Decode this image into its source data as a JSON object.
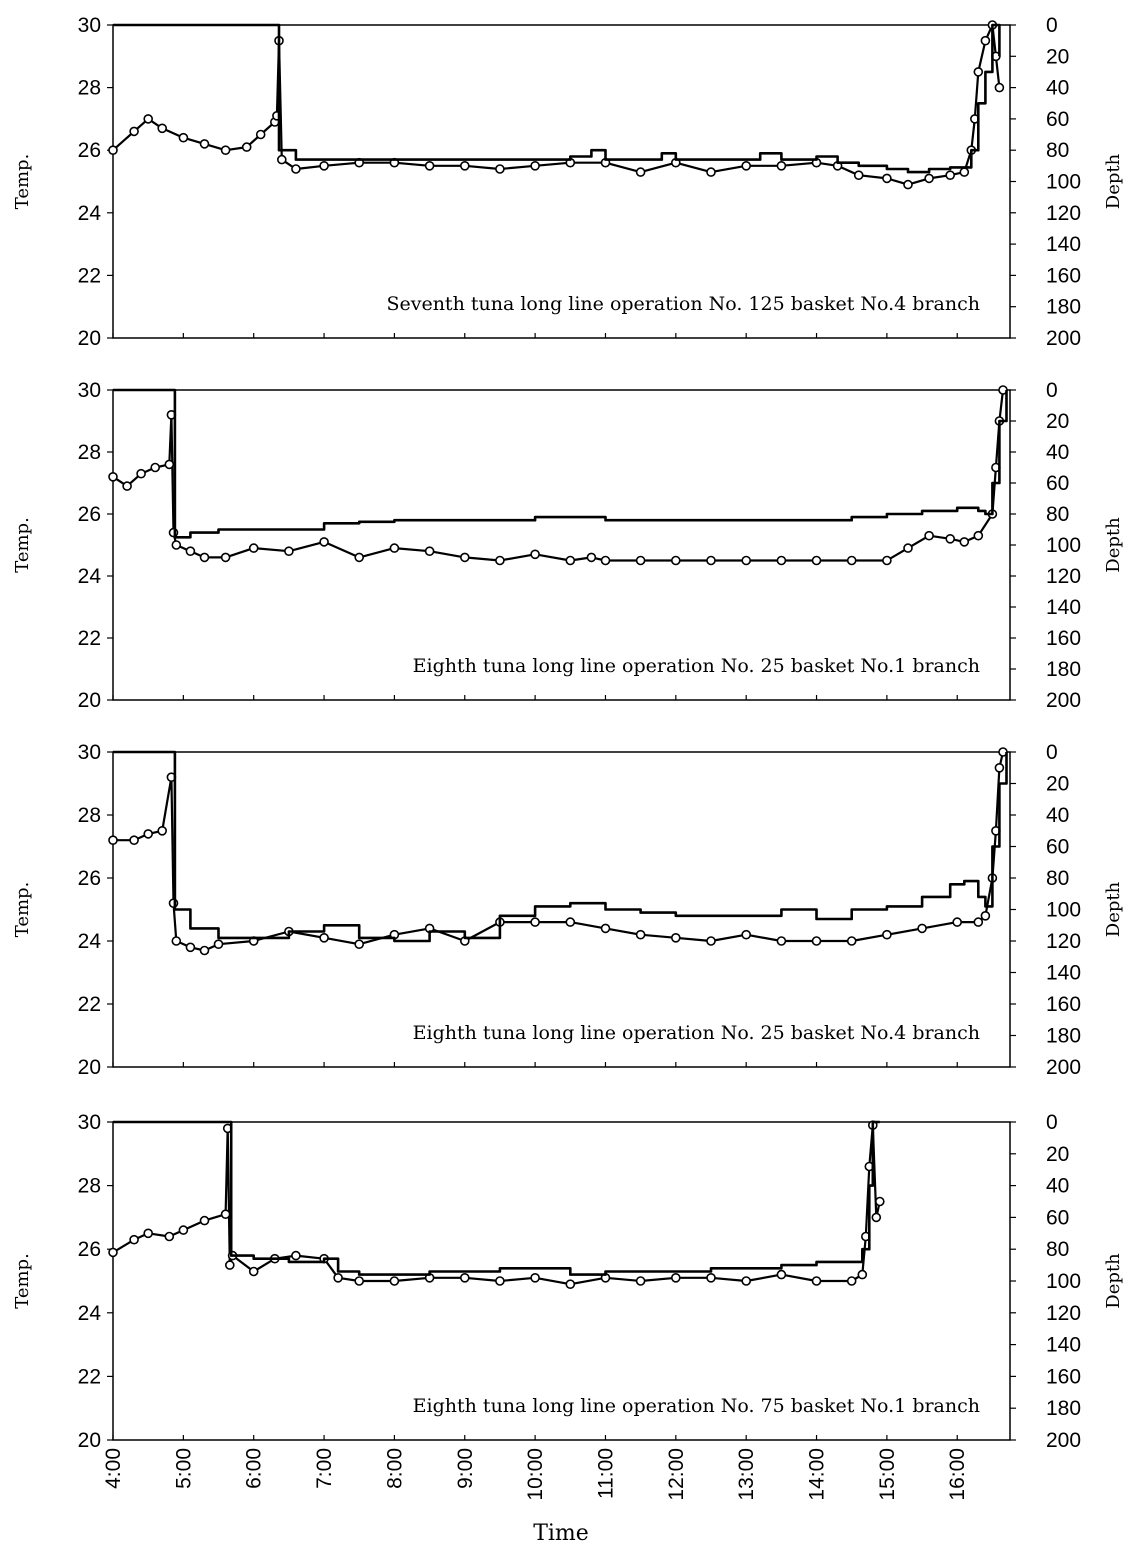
{
  "figure": {
    "x_axis_label": "Time",
    "left_axis_label": "Temp.",
    "right_axis_label": "Depth",
    "x_tick_labels": [
      "4:00",
      "5:00",
      "6:00",
      "7:00",
      "8:00",
      "9:00",
      "10:00",
      "11:00",
      "12:00",
      "13:00",
      "14:00",
      "15:00",
      "16:00"
    ],
    "left_tick_labels": [
      "30",
      "28",
      "26",
      "24",
      "22",
      "20"
    ],
    "right_tick_labels": [
      "0",
      "20",
      "40",
      "60",
      "80",
      "100",
      "120",
      "140",
      "160",
      "180",
      "200"
    ],
    "colors": {
      "line": "#000000",
      "marker_fill": "#ffffff",
      "background": "#ffffff"
    }
  },
  "chart_data": [
    {
      "type": "line",
      "title": "Seventh tuna long line operation No. 125 basket No.4 branch",
      "xlabel": "Time",
      "ylabel": "Temp.",
      "y2label": "Depth",
      "xlim": [
        4.0,
        16.75
      ],
      "ylim": [
        20,
        30
      ],
      "y2lim": [
        200,
        0
      ],
      "grid": false,
      "series": [
        {
          "axis": "left",
          "marker": "circle",
          "x": [
            4.0,
            4.3,
            4.5,
            4.7,
            5.0,
            5.3,
            5.6,
            5.9,
            6.1,
            6.3,
            6.33,
            6.36,
            6.4,
            6.6,
            7.0,
            7.5,
            8.0,
            8.5,
            9.0,
            9.5,
            10.0,
            10.5,
            11.0,
            11.5,
            12.0,
            12.5,
            13.0,
            13.5,
            14.0,
            14.3,
            14.6,
            15.0,
            15.3,
            15.6,
            15.9,
            16.1,
            16.2,
            16.25,
            16.3,
            16.4,
            16.5,
            16.55,
            16.6
          ],
          "y": [
            26.0,
            26.6,
            27.0,
            26.7,
            26.4,
            26.2,
            26.0,
            26.1,
            26.5,
            26.9,
            27.1,
            29.5,
            25.7,
            25.4,
            25.5,
            25.6,
            25.6,
            25.5,
            25.5,
            25.4,
            25.5,
            25.6,
            25.6,
            25.3,
            25.6,
            25.3,
            25.5,
            25.5,
            25.6,
            25.5,
            25.2,
            25.1,
            24.9,
            25.1,
            25.2,
            25.3,
            26.0,
            27.0,
            28.5,
            29.5,
            30.0,
            29.0,
            28.0
          ]
        },
        {
          "axis": "right",
          "marker": "none",
          "x": [
            4.0,
            6.33,
            6.36,
            6.6,
            7.0,
            7.5,
            8.0,
            8.5,
            9.0,
            9.5,
            10.0,
            10.5,
            10.8,
            11.0,
            11.5,
            11.8,
            12.0,
            12.5,
            13.0,
            13.2,
            13.5,
            14.0,
            14.3,
            14.6,
            15.0,
            15.3,
            15.6,
            15.9,
            16.1,
            16.2,
            16.3,
            16.4,
            16.5,
            16.6
          ],
          "y": [
            0,
            0,
            80,
            86,
            86,
            86,
            86,
            86,
            86,
            86,
            86,
            84,
            80,
            86,
            86,
            82,
            86,
            86,
            86,
            82,
            86,
            84,
            88,
            90,
            92,
            94,
            92,
            91,
            91,
            80,
            50,
            30,
            0,
            20
          ]
        }
      ]
    },
    {
      "type": "line",
      "title": "Eighth tuna long line operation No. 25 basket No.1 branch",
      "xlabel": "Time",
      "ylabel": "Temp.",
      "y2label": "Depth",
      "xlim": [
        4.0,
        16.75
      ],
      "ylim": [
        20,
        30
      ],
      "y2lim": [
        200,
        0
      ],
      "grid": false,
      "series": [
        {
          "axis": "left",
          "marker": "circle",
          "x": [
            4.0,
            4.2,
            4.4,
            4.6,
            4.8,
            4.83,
            4.86,
            4.9,
            5.1,
            5.3,
            5.6,
            6.0,
            6.5,
            7.0,
            7.5,
            8.0,
            8.5,
            9.0,
            9.5,
            10.0,
            10.5,
            10.8,
            11.0,
            11.5,
            12.0,
            12.5,
            13.0,
            13.5,
            14.0,
            14.5,
            15.0,
            15.3,
            15.6,
            15.9,
            16.1,
            16.3,
            16.5,
            16.55,
            16.6,
            16.65
          ],
          "y": [
            27.2,
            26.9,
            27.3,
            27.5,
            27.6,
            29.2,
            25.4,
            25.0,
            24.8,
            24.6,
            24.6,
            24.9,
            24.8,
            25.1,
            24.6,
            24.9,
            24.8,
            24.6,
            24.5,
            24.7,
            24.5,
            24.6,
            24.5,
            24.5,
            24.5,
            24.5,
            24.5,
            24.5,
            24.5,
            24.5,
            24.5,
            24.9,
            25.3,
            25.2,
            25.1,
            25.3,
            26.0,
            27.5,
            29.0,
            30.0
          ]
        },
        {
          "axis": "right",
          "marker": "none",
          "x": [
            4.0,
            4.85,
            4.88,
            5.1,
            5.5,
            6.0,
            6.5,
            7.0,
            7.5,
            8.0,
            9.0,
            10.0,
            11.0,
            11.5,
            12.0,
            13.0,
            14.0,
            14.5,
            15.0,
            15.5,
            16.0,
            16.3,
            16.4,
            16.5,
            16.6,
            16.7
          ],
          "y": [
            0,
            0,
            95,
            92,
            90,
            90,
            90,
            86,
            85,
            84,
            84,
            82,
            84,
            84,
            84,
            84,
            84,
            82,
            80,
            78,
            76,
            78,
            80,
            60,
            20,
            0
          ]
        }
      ]
    },
    {
      "type": "line",
      "title": "Eighth tuna long line operation No. 25 basket No.4 branch",
      "xlabel": "Time",
      "ylabel": "Temp.",
      "y2label": "Depth",
      "xlim": [
        4.0,
        16.75
      ],
      "ylim": [
        20,
        30
      ],
      "y2lim": [
        200,
        0
      ],
      "grid": false,
      "series": [
        {
          "axis": "left",
          "marker": "circle",
          "x": [
            4.0,
            4.3,
            4.5,
            4.7,
            4.83,
            4.86,
            4.9,
            5.1,
            5.3,
            5.5,
            6.0,
            6.5,
            7.0,
            7.5,
            8.0,
            8.5,
            9.0,
            9.5,
            10.0,
            10.5,
            11.0,
            11.5,
            12.0,
            12.5,
            13.0,
            13.5,
            14.0,
            14.5,
            15.0,
            15.5,
            16.0,
            16.3,
            16.4,
            16.5,
            16.55,
            16.6,
            16.65
          ],
          "y": [
            27.2,
            27.2,
            27.4,
            27.5,
            29.2,
            25.2,
            24.0,
            23.8,
            23.7,
            23.9,
            24.0,
            24.3,
            24.1,
            23.9,
            24.2,
            24.4,
            24.0,
            24.6,
            24.6,
            24.6,
            24.4,
            24.2,
            24.1,
            24.0,
            24.2,
            24.0,
            24.0,
            24.0,
            24.2,
            24.4,
            24.6,
            24.6,
            24.8,
            26.0,
            27.5,
            29.5,
            30.0
          ]
        },
        {
          "axis": "right",
          "marker": "none",
          "x": [
            4.0,
            4.85,
            4.88,
            5.1,
            5.5,
            6.0,
            6.5,
            7.0,
            7.5,
            8.0,
            8.5,
            9.0,
            9.5,
            10.0,
            10.5,
            11.0,
            11.5,
            12.0,
            12.5,
            13.0,
            13.5,
            14.0,
            14.5,
            15.0,
            15.5,
            15.9,
            16.1,
            16.3,
            16.4,
            16.5,
            16.6,
            16.7
          ],
          "y": [
            0,
            0,
            100,
            112,
            118,
            118,
            114,
            110,
            118,
            120,
            114,
            118,
            104,
            98,
            96,
            100,
            102,
            104,
            104,
            104,
            100,
            106,
            100,
            98,
            92,
            84,
            82,
            92,
            98,
            60,
            20,
            0
          ]
        }
      ]
    },
    {
      "type": "line",
      "title": "Eighth tuna long line operation No. 75 basket No.1 branch",
      "xlabel": "Time",
      "ylabel": "Temp.",
      "y2label": "Depth",
      "xlim": [
        4.0,
        16.75
      ],
      "ylim": [
        20,
        30
      ],
      "y2lim": [
        200,
        0
      ],
      "grid": false,
      "series": [
        {
          "axis": "left",
          "marker": "circle",
          "x": [
            4.0,
            4.3,
            4.5,
            4.8,
            5.0,
            5.3,
            5.6,
            5.63,
            5.66,
            5.7,
            6.0,
            6.3,
            6.6,
            7.0,
            7.2,
            7.5,
            8.0,
            8.5,
            9.0,
            9.5,
            10.0,
            10.5,
            11.0,
            11.5,
            12.0,
            12.5,
            13.0,
            13.5,
            14.0,
            14.5,
            14.65,
            14.7,
            14.75,
            14.8,
            14.85,
            14.9
          ],
          "y": [
            25.9,
            26.3,
            26.5,
            26.4,
            26.6,
            26.9,
            27.1,
            29.8,
            25.5,
            25.8,
            25.3,
            25.7,
            25.8,
            25.7,
            25.1,
            25.0,
            25.0,
            25.1,
            25.1,
            25.0,
            25.1,
            24.9,
            25.1,
            25.0,
            25.1,
            25.1,
            25.0,
            25.2,
            25.0,
            25.0,
            25.2,
            26.4,
            28.6,
            29.9,
            27.0,
            27.5
          ]
        },
        {
          "axis": "right",
          "marker": "none",
          "x": [
            4.0,
            5.65,
            5.68,
            6.0,
            6.5,
            7.0,
            7.2,
            7.5,
            8.0,
            8.5,
            9.0,
            9.5,
            10.0,
            10.5,
            11.0,
            11.5,
            12.0,
            12.5,
            13.0,
            13.5,
            14.0,
            14.5,
            14.65,
            14.75,
            14.8,
            14.85,
            14.9
          ],
          "y": [
            0,
            0,
            84,
            86,
            88,
            86,
            94,
            96,
            96,
            94,
            94,
            92,
            92,
            96,
            94,
            94,
            94,
            92,
            92,
            90,
            88,
            88,
            80,
            40,
            0,
            0,
            0
          ]
        }
      ]
    }
  ]
}
